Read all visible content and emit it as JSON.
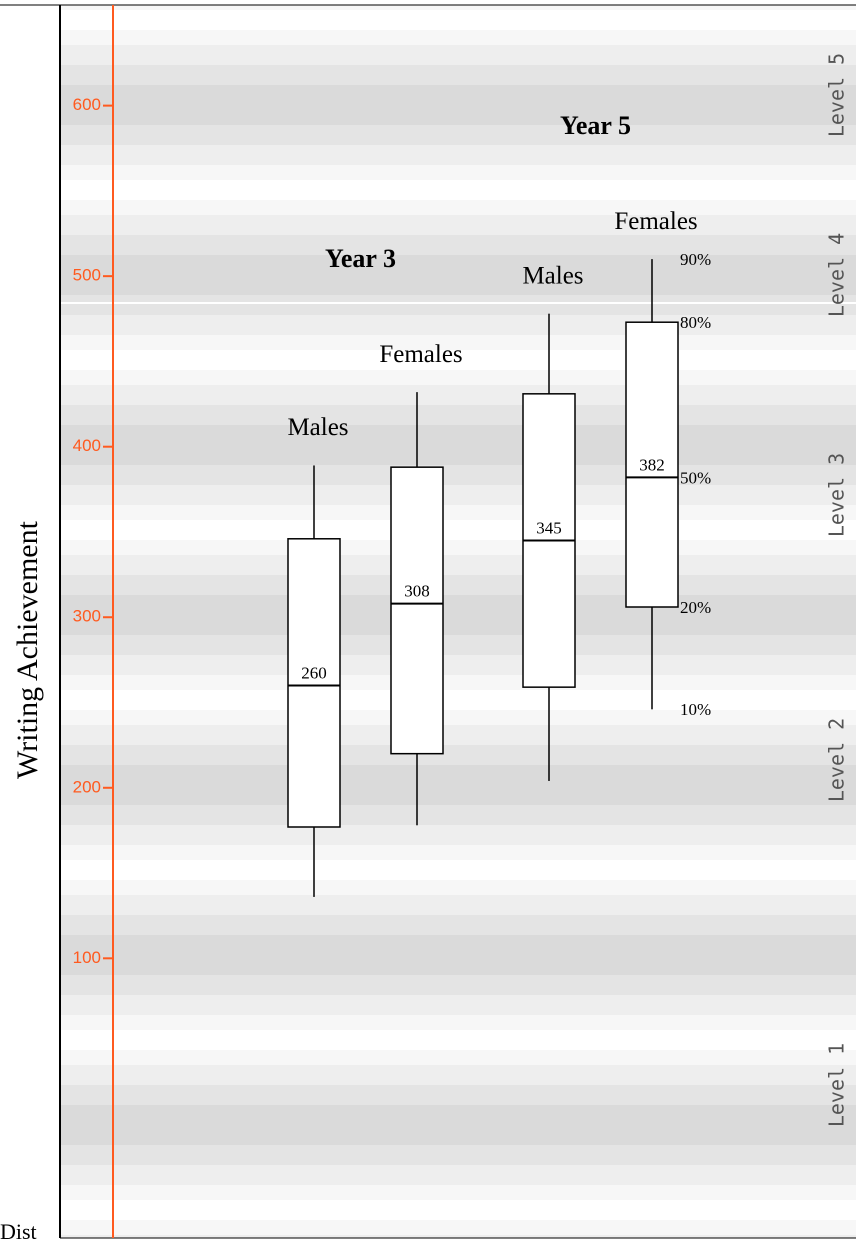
{
  "chart_data": {
    "type": "box",
    "ylabel": "Writing Achievement",
    "footer": "Dist",
    "ylim": [
      -64,
      659
    ],
    "yticks": [
      100,
      200,
      300,
      400,
      500,
      600
    ],
    "axis_color": "#ff5a1f",
    "groups": [
      {
        "name": "Year 3",
        "categories": [
          "Males",
          "Females"
        ],
        "boxes": [
          {
            "whislo": 136,
            "q1": 177,
            "med": 260,
            "q3": 346,
            "whishi": 389
          },
          {
            "whislo": 178,
            "q1": 220,
            "med": 308,
            "q3": 388,
            "whishi": 432
          }
        ]
      },
      {
        "name": "Year 5",
        "categories": [
          "Males",
          "Females"
        ],
        "boxes": [
          {
            "whislo": 204,
            "q1": 259,
            "med": 345,
            "q3": 431,
            "whishi": 478
          },
          {
            "whislo": 246,
            "q1": 306,
            "med": 382,
            "q3": 473,
            "whishi": 510
          }
        ]
      }
    ],
    "percentile_labels": {
      "whislo": "10%",
      "q1": "20%",
      "med": "50%",
      "q3": "80%",
      "whishi": "90%"
    },
    "levels": [
      "Level 1",
      "Level 2",
      "Level 3",
      "Level 4",
      "Level 5"
    ]
  }
}
